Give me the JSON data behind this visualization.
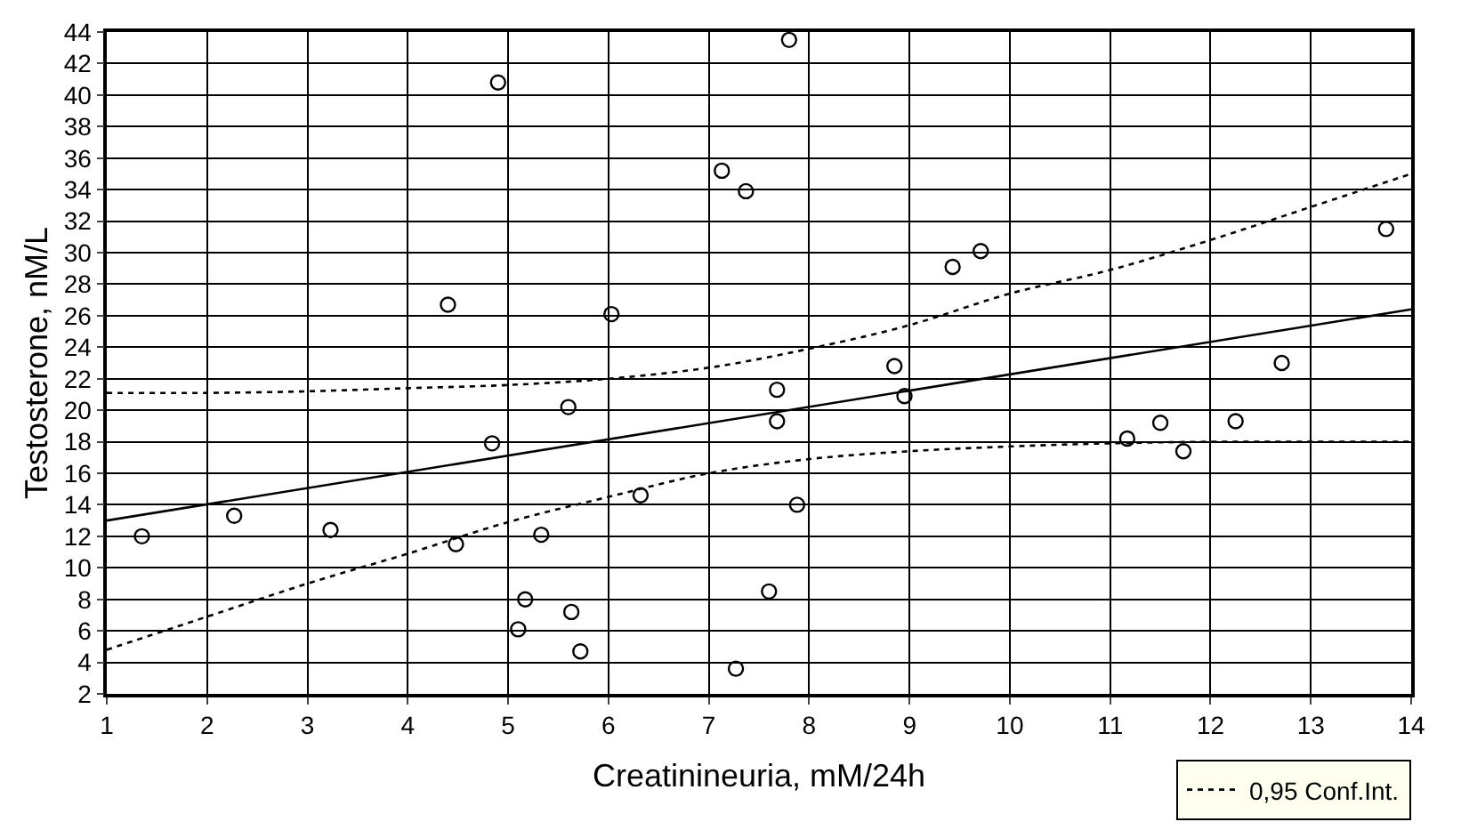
{
  "chart_data": {
    "type": "scatter",
    "xlabel": "Creatinineuria, mM/24h",
    "ylabel": "Testosterone, nM/L",
    "xlim": [
      1,
      14
    ],
    "xticks": [
      1,
      2,
      3,
      4,
      5,
      6,
      7,
      8,
      9,
      10,
      11,
      12,
      13,
      14
    ],
    "ylim": [
      2,
      44
    ],
    "yticks": [
      2,
      4,
      6,
      8,
      10,
      12,
      14,
      16,
      18,
      20,
      22,
      24,
      26,
      28,
      30,
      32,
      34,
      36,
      38,
      40,
      42,
      44
    ],
    "grid": true,
    "legend": "bottom right",
    "marker": "circle",
    "series": [
      {
        "color": "#000000",
        "x": [
          1.35,
          2.27,
          3.23,
          4.4,
          4.48,
          4.84,
          4.9,
          5.1,
          5.17,
          5.33,
          5.6,
          5.63,
          5.72,
          6.03,
          6.32,
          7.13,
          7.27,
          7.37,
          7.6,
          7.68,
          7.68,
          7.8,
          7.88,
          8.85,
          8.95,
          9.43,
          9.71,
          11.17,
          11.5,
          11.73,
          12.25,
          12.71,
          13.75
        ],
        "values": [
          12,
          13.3,
          12.4,
          26.7,
          11.5,
          17.9,
          40.8,
          6.1,
          8,
          12.1,
          20.2,
          7.2,
          4.7,
          26.1,
          14.6,
          35.2,
          3.6,
          33.9,
          8.5,
          21.3,
          19.3,
          43.5,
          14,
          22.8,
          20.9,
          29.1,
          30.1,
          18.2,
          19.2,
          17.4,
          19.3,
          23,
          31.5
        ]
      },
      {
        "type": "line",
        "color": "#000000",
        "line_style": "solid",
        "marker": "none",
        "x": [
          1,
          14
        ],
        "values": [
          13,
          26.4
        ]
      },
      {
        "type": "line",
        "color": "#000000",
        "line_style": "dotted",
        "marker": "none",
        "x": [
          1,
          2,
          3,
          4,
          5,
          6,
          7,
          8,
          9,
          10,
          11,
          12,
          13,
          14
        ],
        "values": [
          21.1,
          21.1,
          21.2,
          21.4,
          21.6,
          22,
          22.7,
          23.9,
          25.4,
          27.4,
          28.9,
          30.8,
          32.9,
          35
        ]
      },
      {
        "name": "0,95 Conf.Int.",
        "type": "line",
        "color": "#000000",
        "line_style": "dotted",
        "marker": "none",
        "x": [
          1,
          2,
          3,
          4,
          5,
          6,
          7,
          8,
          9,
          10,
          11,
          12,
          13,
          14
        ],
        "values": [
          4.8,
          6.9,
          9,
          10.9,
          12.9,
          14.5,
          16,
          16.9,
          17.4,
          17.7,
          17.9,
          18,
          18,
          18
        ]
      }
    ]
  }
}
